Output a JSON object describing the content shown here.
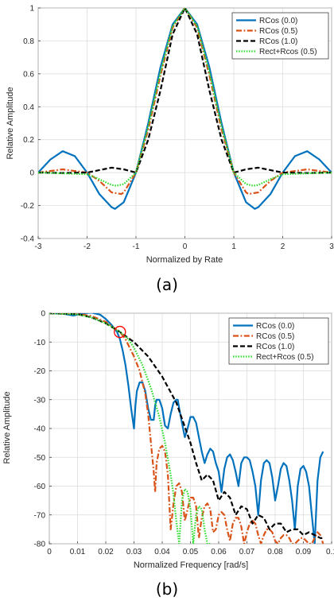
{
  "chart_data": [
    {
      "type": "line",
      "caption": "(a)",
      "xlabel": "Normalized by Rate",
      "ylabel": "Relative Amplitude",
      "xlim": [
        -3,
        3
      ],
      "ylim": [
        -0.4,
        1
      ],
      "xticks": [
        "-3",
        "-2",
        "-1",
        "0",
        "1",
        "2",
        "3"
      ],
      "yticks": [
        "-0.4",
        "-0.2",
        "0",
        "0.2",
        "0.4",
        "0.6",
        "0.8",
        "1"
      ],
      "grid": true,
      "legend_position": "top-right",
      "series": [
        {
          "name": "RCos (0.0)",
          "color": "#0072BD",
          "style": "solid",
          "x": [
            -3,
            -2.75,
            -2.5,
            -2.25,
            -2,
            -1.75,
            -1.5,
            -1.43,
            -1.25,
            -1,
            -0.75,
            -0.5,
            -0.25,
            0,
            0.25,
            0.5,
            0.75,
            1,
            1.25,
            1.43,
            1.5,
            1.75,
            2,
            2.25,
            2.5,
            2.75,
            3
          ],
          "y": [
            0,
            0.08,
            0.13,
            0.1,
            0,
            -0.13,
            -0.21,
            -0.22,
            -0.18,
            0,
            0.3,
            0.64,
            0.9,
            1,
            0.9,
            0.64,
            0.3,
            0,
            -0.18,
            -0.22,
            -0.21,
            -0.13,
            0,
            0.1,
            0.13,
            0.08,
            0
          ]
        },
        {
          "name": "RCos (0.5)",
          "color": "#D95319",
          "style": "dashdot",
          "x": [
            -3,
            -2.75,
            -2.5,
            -2.25,
            -2,
            -1.75,
            -1.5,
            -1.3,
            -1.25,
            -1,
            -0.75,
            -0.5,
            -0.25,
            0,
            0.25,
            0.5,
            0.75,
            1,
            1.25,
            1.3,
            1.5,
            1.75,
            2,
            2.25,
            2.5,
            2.75,
            3
          ],
          "y": [
            0,
            0.01,
            0.02,
            0.01,
            0,
            -0.05,
            -0.12,
            -0.13,
            -0.12,
            0,
            0.26,
            0.59,
            0.88,
            1,
            0.88,
            0.59,
            0.26,
            0,
            -0.12,
            -0.13,
            -0.12,
            -0.05,
            0,
            0.01,
            0.02,
            0.01,
            0
          ]
        },
        {
          "name": "RCos (1.0)",
          "color": "#000000",
          "style": "dashed",
          "x": [
            -3,
            -2.5,
            -2,
            -1.5,
            -1.25,
            -1,
            -0.75,
            -0.5,
            -0.25,
            0,
            0.25,
            0.5,
            0.75,
            1,
            1.25,
            1.5,
            2,
            2.5,
            3
          ],
          "y": [
            0,
            -0.002,
            0,
            0.03,
            0.02,
            0,
            0.2,
            0.5,
            0.84,
            1,
            0.84,
            0.5,
            0.2,
            0,
            0.02,
            0.03,
            0,
            -0.002,
            0
          ]
        },
        {
          "name": "Rect+Rcos (0.5)",
          "color": "#33DD33",
          "style": "dotted",
          "x": [
            -3,
            -2.5,
            -2,
            -1.75,
            -1.5,
            -1.4,
            -1.25,
            -1,
            -0.75,
            -0.5,
            -0.25,
            0,
            0.25,
            0.5,
            0.75,
            1,
            1.25,
            1.4,
            1.5,
            1.75,
            2,
            2.5,
            3
          ],
          "y": [
            0,
            -0.004,
            -0.01,
            -0.04,
            -0.075,
            -0.08,
            -0.07,
            0,
            0.28,
            0.61,
            0.89,
            1,
            0.89,
            0.61,
            0.28,
            0,
            -0.07,
            -0.08,
            -0.075,
            -0.04,
            -0.01,
            -0.004,
            0
          ]
        }
      ]
    },
    {
      "type": "line",
      "caption": "(b)",
      "xlabel": "Normalized Frequency [rad/s]",
      "ylabel": "Relative Amplitude",
      "xlim": [
        0,
        0.1
      ],
      "ylim": [
        -80,
        0
      ],
      "xticks": [
        "0",
        "0.01",
        "0.02",
        "0.03",
        "0.04",
        "0.05",
        "0.06",
        "0.07",
        "0.08",
        "0.09",
        "0.1"
      ],
      "yticks": [
        "-80",
        "-70",
        "-60",
        "-50",
        "-40",
        "-30",
        "-20",
        "-10",
        "0"
      ],
      "grid": true,
      "legend_position": "top-right",
      "annotation": {
        "type": "circle",
        "x": 0.025,
        "y": -6.5,
        "color": "#FF0000"
      },
      "series": [
        {
          "name": "RCos (0.0)",
          "color": "#0072BD",
          "style": "solid",
          "x": [
            0,
            0.005,
            0.0085,
            0.012,
            0.015,
            0.018,
            0.02,
            0.022,
            0.024,
            0.025,
            0.026,
            0.027,
            0.028,
            0.029,
            0.03,
            0.0305,
            0.031,
            0.032,
            0.033,
            0.034,
            0.035,
            0.036,
            0.037,
            0.0375,
            0.038,
            0.039,
            0.04,
            0.041,
            0.042,
            0.043,
            0.044,
            0.045,
            0.0455,
            0.046,
            0.047,
            0.048,
            0.049,
            0.05,
            0.051,
            0.052,
            0.053,
            0.053,
            0.054,
            0.055,
            0.056,
            0.057,
            0.058,
            0.059,
            0.06,
            0.061,
            0.062,
            0.063,
            0.064,
            0.065,
            0.066,
            0.067,
            0.068,
            0.069,
            0.07,
            0.071,
            0.072,
            0.073,
            0.074,
            0.075,
            0.076,
            0.077,
            0.078,
            0.079,
            0.08,
            0.081,
            0.082,
            0.083,
            0.084,
            0.085,
            0.086,
            0.087,
            0.088,
            0.089,
            0.09,
            0.091,
            0.092,
            0.093,
            0.094,
            0.095,
            0.096,
            0.097
          ],
          "y": [
            0,
            -0.2,
            -0.8,
            0,
            0.2,
            -0.5,
            -2,
            -4,
            -6.5,
            -9,
            -13,
            -18,
            -25,
            -33,
            -40,
            -32,
            -27,
            -24,
            -24,
            -27,
            -33,
            -37,
            -37,
            -32,
            -30,
            -30,
            -33,
            -39,
            -40,
            -35,
            -31,
            -30,
            -30,
            -33,
            -38,
            -43,
            -40,
            -36,
            -36,
            -38,
            -43,
            -43,
            -48,
            -52,
            -49,
            -47,
            -48,
            -52,
            -55,
            -62,
            -54,
            -50,
            -49,
            -51,
            -55,
            -60,
            -52,
            -50,
            -50,
            -51,
            -55,
            -60,
            -70,
            -58,
            -52,
            -51,
            -52,
            -57,
            -65,
            -60,
            -54,
            -52,
            -53,
            -58,
            -65,
            -75,
            -60,
            -54,
            -53,
            -55,
            -60,
            -70,
            -80,
            -58,
            -50,
            -48
          ]
        },
        {
          "name": "RCos (0.5)",
          "color": "#D95319",
          "style": "dashdot",
          "x": [
            0,
            0.01,
            0.015,
            0.02,
            0.022,
            0.025,
            0.027,
            0.03,
            0.032,
            0.034,
            0.035,
            0.036,
            0.037,
            0.0375,
            0.038,
            0.039,
            0.04,
            0.041,
            0.042,
            0.043,
            0.044,
            0.045,
            0.046,
            0.047,
            0.048,
            0.049,
            0.05,
            0.051,
            0.052,
            0.053,
            0.054,
            0.055,
            0.056,
            0.057,
            0.058,
            0.059,
            0.06,
            0.061,
            0.062,
            0.063,
            0.064,
            0.065,
            0.066,
            0.067,
            0.068,
            0.069,
            0.07,
            0.071,
            0.072,
            0.073,
            0.074,
            0.075,
            0.076,
            0.077,
            0.078,
            0.079,
            0.08,
            0.081,
            0.082,
            0.083,
            0.084,
            0.085,
            0.086,
            0.087,
            0.088,
            0.089,
            0.09,
            0.091,
            0.092,
            0.093,
            0.094,
            0.095,
            0.096,
            0.097
          ],
          "y": [
            0,
            -0.2,
            -1,
            -3,
            -4.5,
            -6.5,
            -9,
            -15,
            -20,
            -28,
            -35,
            -45,
            -55,
            -62,
            -52,
            -47,
            -46,
            -48,
            -56,
            -75,
            -66,
            -60,
            -59,
            -62,
            -72,
            -68,
            -64,
            -64,
            -67,
            -78,
            -71,
            -67,
            -66,
            -68,
            -76,
            -75,
            -70,
            -69,
            -70,
            -75,
            -79,
            -73,
            -71,
            -71,
            -74,
            -80,
            -76,
            -73,
            -72,
            -73,
            -77,
            -80,
            -77,
            -75,
            -75,
            -76,
            -79,
            -80,
            -78,
            -77,
            -77,
            -78,
            -80,
            -80,
            -79,
            -78,
            -78,
            -79,
            -80,
            -80,
            -78,
            -76,
            -77,
            -80
          ]
        },
        {
          "name": "RCos (1.0)",
          "color": "#000000",
          "style": "dashed",
          "x": [
            0,
            0.01,
            0.015,
            0.02,
            0.025,
            0.03,
            0.035,
            0.04,
            0.045,
            0.05,
            0.052,
            0.054,
            0.056,
            0.058,
            0.06,
            0.062,
            0.064,
            0.066,
            0.068,
            0.07,
            0.072,
            0.074,
            0.076,
            0.078,
            0.08,
            0.082,
            0.084,
            0.086,
            0.088,
            0.09,
            0.092,
            0.094,
            0.096,
            0.097
          ],
          "y": [
            0,
            -0.3,
            -1.5,
            -3.5,
            -6.5,
            -10,
            -15,
            -22,
            -31,
            -45,
            -52,
            -58,
            -56,
            -58,
            -65,
            -62,
            -64,
            -70,
            -67,
            -68,
            -73,
            -70,
            -71,
            -75,
            -73,
            -73,
            -76,
            -75,
            -75,
            -77,
            -76,
            -77,
            -78,
            -78
          ]
        },
        {
          "name": "Rect+Rcos (0.5)",
          "color": "#33DD33",
          "style": "dotted",
          "x": [
            0,
            0.01,
            0.015,
            0.02,
            0.025,
            0.028,
            0.03,
            0.033,
            0.036,
            0.039,
            0.041,
            0.043,
            0.044,
            0.045,
            0.046,
            0.047,
            0.048,
            0.049,
            0.05,
            0.051,
            0.052,
            0.053,
            0.054,
            0.055,
            0.056,
            0.057
          ],
          "y": [
            0,
            -0.4,
            -1.5,
            -3.5,
            -6.5,
            -9,
            -12,
            -18,
            -26,
            -36,
            -45,
            -56,
            -63,
            -72,
            -80,
            -65,
            -61,
            -62,
            -68,
            -80,
            -70,
            -67,
            -68,
            -75,
            -80,
            -80
          ]
        }
      ]
    }
  ]
}
